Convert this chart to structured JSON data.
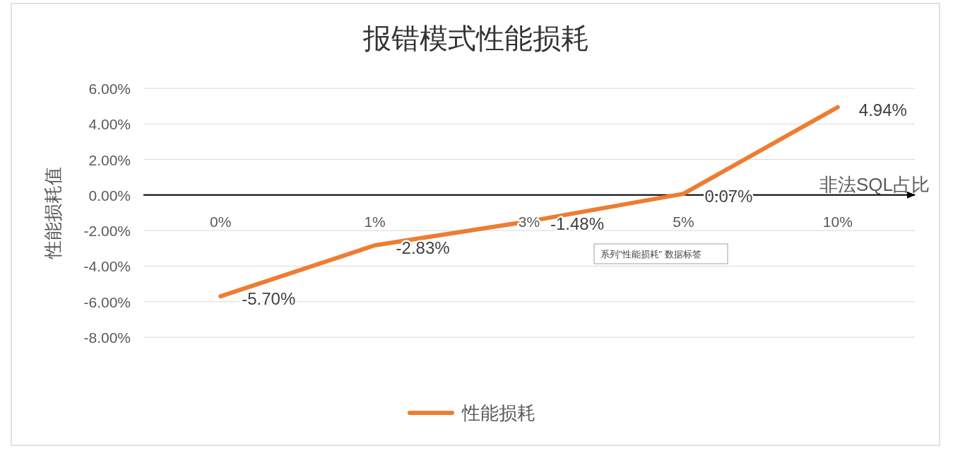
{
  "chart_data": {
    "type": "line",
    "title": "报错模式性能损耗",
    "xlabel": "非法SQL占比",
    "ylabel": "性能损耗值",
    "categories": [
      "0%",
      "1%",
      "3%",
      "5%",
      "10%"
    ],
    "series": [
      {
        "name": "性能损耗",
        "color": "#ed7d31",
        "values": [
          -5.7,
          -2.83,
          -1.48,
          0.07,
          4.94
        ],
        "value_labels": [
          "-5.70%",
          "-2.83%",
          "-1.48%",
          "0.07%",
          "4.94%"
        ]
      }
    ],
    "ylim": [
      -8,
      6
    ],
    "yticks": [
      {
        "value": 6,
        "label": "6.00%"
      },
      {
        "value": 4,
        "label": "4.00%"
      },
      {
        "value": 2,
        "label": "2.00%"
      },
      {
        "value": 0,
        "label": "0.00%"
      },
      {
        "value": -2,
        "label": "-2.00%"
      },
      {
        "value": -4,
        "label": "-4.00%"
      },
      {
        "value": -6,
        "label": "-6.00%"
      },
      {
        "value": -8,
        "label": "-8.00%"
      }
    ],
    "grid": "y",
    "legend": "bottom",
    "marker": "none",
    "line_style": "solid",
    "annotations": [
      "系列\"性能损耗\" 数据标签"
    ]
  }
}
